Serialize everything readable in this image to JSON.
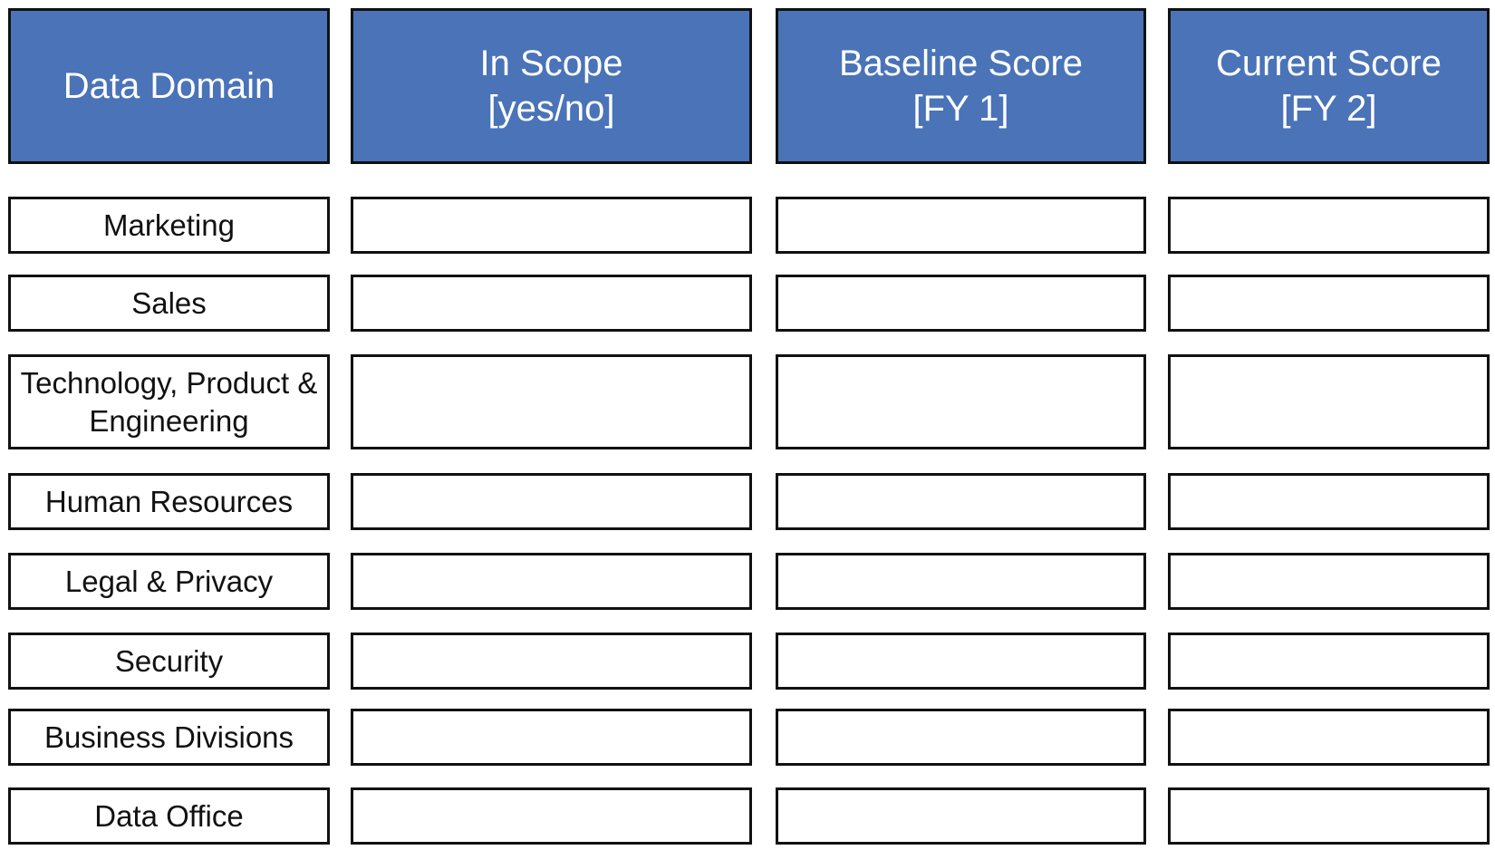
{
  "headers": [
    "Data Domain",
    "In Scope\n[yes/no]",
    "Baseline Score\n[FY 1]",
    "Current Score\n[FY 2]"
  ],
  "domains": [
    "Marketing",
    "Sales",
    "Technology, Product & Engineering",
    "Human Resources",
    "Legal & Privacy",
    "Security",
    "Business Divisions",
    "Data Office"
  ],
  "cells": [
    [
      "",
      "",
      ""
    ],
    [
      "",
      "",
      ""
    ],
    [
      "",
      "",
      ""
    ],
    [
      "",
      "",
      ""
    ],
    [
      "",
      "",
      ""
    ],
    [
      "",
      "",
      ""
    ],
    [
      "",
      "",
      ""
    ],
    [
      "",
      "",
      ""
    ]
  ],
  "colors": {
    "header_fill": "#4a73b8",
    "border": "#111111",
    "header_text": "#ffffff",
    "body_text": "#111111"
  }
}
